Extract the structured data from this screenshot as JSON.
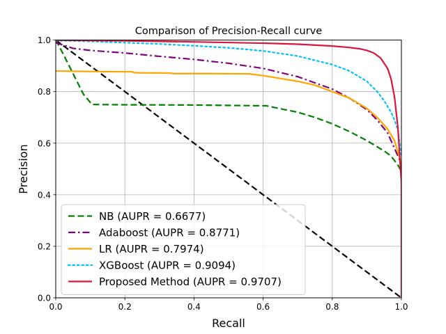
{
  "chart_data": {
    "type": "line",
    "title": "Comparison of Precision-Recall curve",
    "xlabel": "Recall",
    "ylabel": "Precision",
    "xlim": [
      0,
      1
    ],
    "ylim": [
      0,
      1
    ],
    "xticks": [
      "0.0",
      "0.2",
      "0.4",
      "0.6",
      "0.8",
      "1.0"
    ],
    "yticks": [
      "0.0",
      "0.2",
      "0.4",
      "0.6",
      "0.8",
      "1.0"
    ],
    "grid": true,
    "legend_position": "lower-left",
    "series": [
      {
        "name": "NB (AUPR = 0.6677)",
        "color": "#008000",
        "style": "dashed",
        "x": [
          0.0,
          0.02,
          0.05,
          0.08,
          0.105,
          0.2,
          0.4,
          0.61,
          0.62,
          0.7,
          0.75,
          0.8,
          0.85,
          0.9,
          0.95,
          0.97,
          0.99,
          1.0
        ],
        "y": [
          1.0,
          0.95,
          0.87,
          0.79,
          0.75,
          0.749,
          0.748,
          0.745,
          0.742,
          0.72,
          0.7,
          0.675,
          0.645,
          0.61,
          0.57,
          0.55,
          0.515,
          0.49
        ]
      },
      {
        "name": "Adaboost (AUPR = 0.8771)",
        "color": "#800080",
        "style": "dashdot",
        "x": [
          0.0,
          0.05,
          0.1,
          0.2,
          0.3,
          0.4,
          0.5,
          0.6,
          0.7,
          0.8,
          0.85,
          0.9,
          0.93,
          0.96,
          0.98,
          1.0
        ],
        "y": [
          0.99,
          0.968,
          0.96,
          0.95,
          0.937,
          0.925,
          0.91,
          0.89,
          0.858,
          0.81,
          0.775,
          0.73,
          0.69,
          0.64,
          0.58,
          0.52
        ]
      },
      {
        "name": "LR (AUPR = 0.7974)",
        "color": "#FFA500",
        "style": "solid",
        "x": [
          0.0,
          0.1,
          0.22,
          0.23,
          0.33,
          0.34,
          0.45,
          0.56,
          0.6,
          0.7,
          0.75,
          0.8,
          0.85,
          0.9,
          0.93,
          0.96,
          0.98,
          1.0
        ],
        "y": [
          0.88,
          0.878,
          0.877,
          0.873,
          0.872,
          0.87,
          0.87,
          0.869,
          0.862,
          0.84,
          0.825,
          0.8,
          0.775,
          0.735,
          0.7,
          0.655,
          0.61,
          0.52
        ]
      },
      {
        "name": "XGBoost (AUPR = 0.9094)",
        "color": "#00BFFF",
        "style": "dotted",
        "x": [
          0.0,
          0.1,
          0.2,
          0.3,
          0.4,
          0.5,
          0.6,
          0.7,
          0.8,
          0.85,
          0.9,
          0.93,
          0.95,
          0.97,
          0.98,
          0.99,
          1.0
        ],
        "y": [
          0.998,
          0.995,
          0.99,
          0.985,
          0.978,
          0.97,
          0.958,
          0.938,
          0.905,
          0.88,
          0.84,
          0.8,
          0.765,
          0.72,
          0.69,
          0.65,
          0.55
        ]
      },
      {
        "name": "Proposed Method (AUPR = 0.9707)",
        "color": "#DC143C",
        "style": "solid",
        "x": [
          0.0,
          0.2,
          0.4,
          0.6,
          0.7,
          0.8,
          0.85,
          0.88,
          0.9,
          0.92,
          0.94,
          0.96,
          0.97,
          0.98,
          0.99,
          0.995,
          1.0,
          1.0
        ],
        "y": [
          1.0,
          0.997,
          0.993,
          0.988,
          0.984,
          0.977,
          0.971,
          0.966,
          0.96,
          0.95,
          0.93,
          0.89,
          0.85,
          0.78,
          0.66,
          0.55,
          0.45,
          0.0
        ]
      },
      {
        "name": "",
        "color": "#000000",
        "style": "dashed",
        "x": [
          0.0,
          1.0
        ],
        "y": [
          1.0,
          0.0
        ]
      }
    ]
  }
}
